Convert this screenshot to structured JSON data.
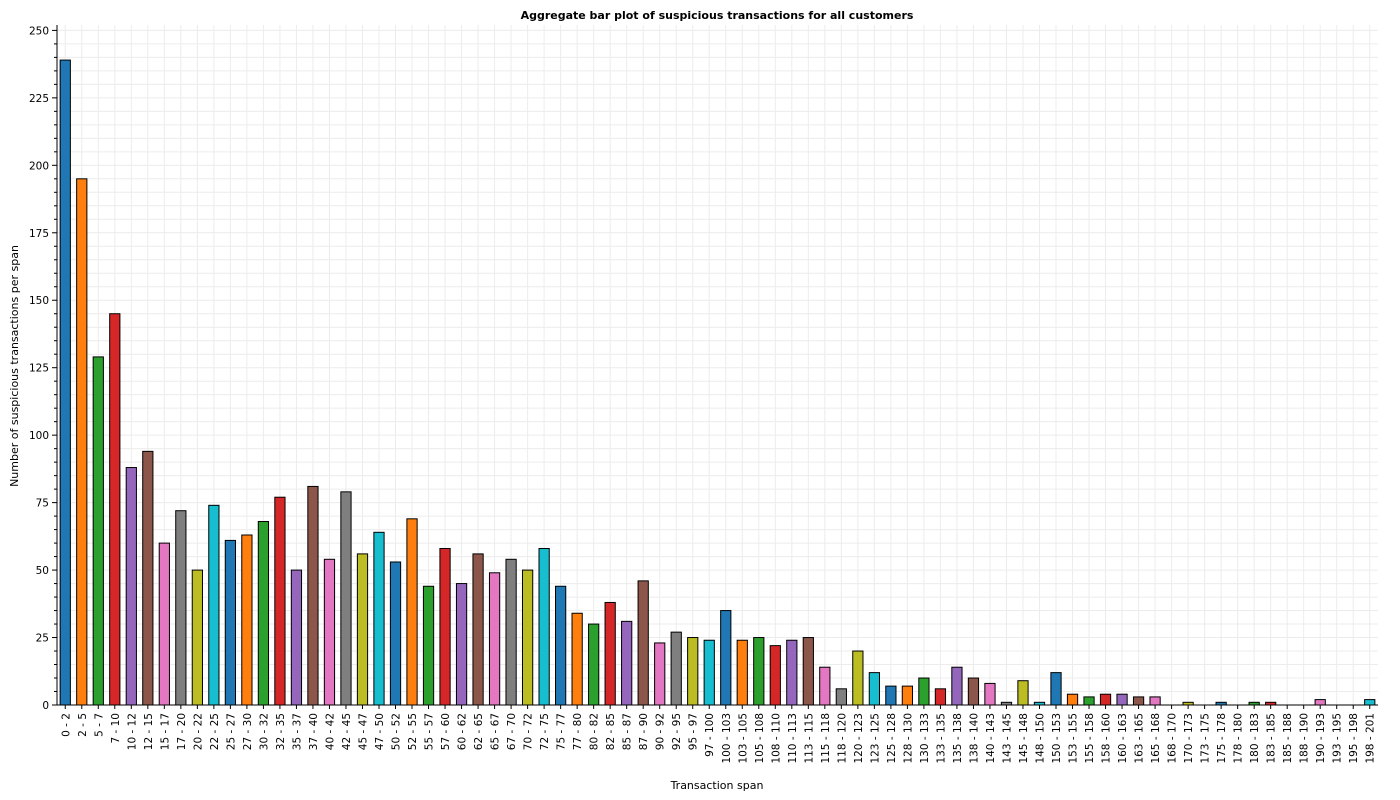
{
  "chart_data": {
    "type": "bar",
    "title": "Aggregate bar plot of suspicious transactions for all customers",
    "xlabel": "Transaction span",
    "ylabel": "Number of suspicious transactions per span",
    "ylim": [
      0,
      252
    ],
    "yticks": [
      0,
      25,
      50,
      75,
      100,
      125,
      150,
      175,
      200,
      225,
      250
    ],
    "grid": true,
    "legend": "none",
    "palette": [
      "#1f77b4",
      "#ff7f0e",
      "#2ca02c",
      "#d62728",
      "#9467bd",
      "#8c564b",
      "#e377c2",
      "#7f7f7f",
      "#bcbd22",
      "#17becf"
    ],
    "categories": [
      "0 - 2",
      "2 - 5",
      "5 - 7",
      "7 - 10",
      "10 - 12",
      "12 - 15",
      "15 - 17",
      "17 - 20",
      "20 - 22",
      "22 - 25",
      "25 - 27",
      "27 - 30",
      "30 - 32",
      "32 - 35",
      "35 - 37",
      "37 - 40",
      "40 - 42",
      "42 - 45",
      "45 - 47",
      "47 - 50",
      "50 - 52",
      "52 - 55",
      "55 - 57",
      "57 - 60",
      "60 - 62",
      "62 - 65",
      "65 - 67",
      "67 - 70",
      "70 - 72",
      "72 - 75",
      "75 - 77",
      "77 - 80",
      "80 - 82",
      "82 - 85",
      "85 - 87",
      "87 - 90",
      "90 - 92",
      "92 - 95",
      "95 - 97",
      "97 - 100",
      "100 - 103",
      "103 - 105",
      "105 - 108",
      "108 - 110",
      "110 - 113",
      "113 - 115",
      "115 - 118",
      "118 - 120",
      "120 - 123",
      "123 - 125",
      "125 - 128",
      "128 - 130",
      "130 - 133",
      "133 - 135",
      "135 - 138",
      "138 - 140",
      "140 - 143",
      "143 - 145",
      "145 - 148",
      "148 - 150",
      "150 - 153",
      "153 - 155",
      "155 - 158",
      "158 - 160",
      "160 - 163",
      "163 - 165",
      "165 - 168",
      "168 - 170",
      "170 - 173",
      "173 - 175",
      "175 - 178",
      "178 - 180",
      "180 - 183",
      "183 - 185",
      "185 - 188",
      "188 - 190",
      "190 - 193",
      "193 - 195",
      "195 - 198",
      "198 - 201"
    ],
    "values": [
      239,
      195,
      129,
      145,
      88,
      94,
      60,
      72,
      50,
      74,
      61,
      63,
      68,
      77,
      50,
      81,
      54,
      79,
      56,
      64,
      53,
      69,
      44,
      58,
      45,
      56,
      49,
      54,
      50,
      58,
      44,
      34,
      30,
      38,
      31,
      46,
      23,
      27,
      25,
      24,
      35,
      24,
      25,
      22,
      24,
      25,
      14,
      6,
      20,
      12,
      7,
      7,
      10,
      6,
      14,
      10,
      8,
      1,
      9,
      1,
      12,
      4,
      3,
      4,
      4,
      3,
      3,
      0,
      1,
      0,
      1,
      0,
      1,
      1,
      0,
      0,
      2,
      0,
      0,
      2
    ]
  }
}
